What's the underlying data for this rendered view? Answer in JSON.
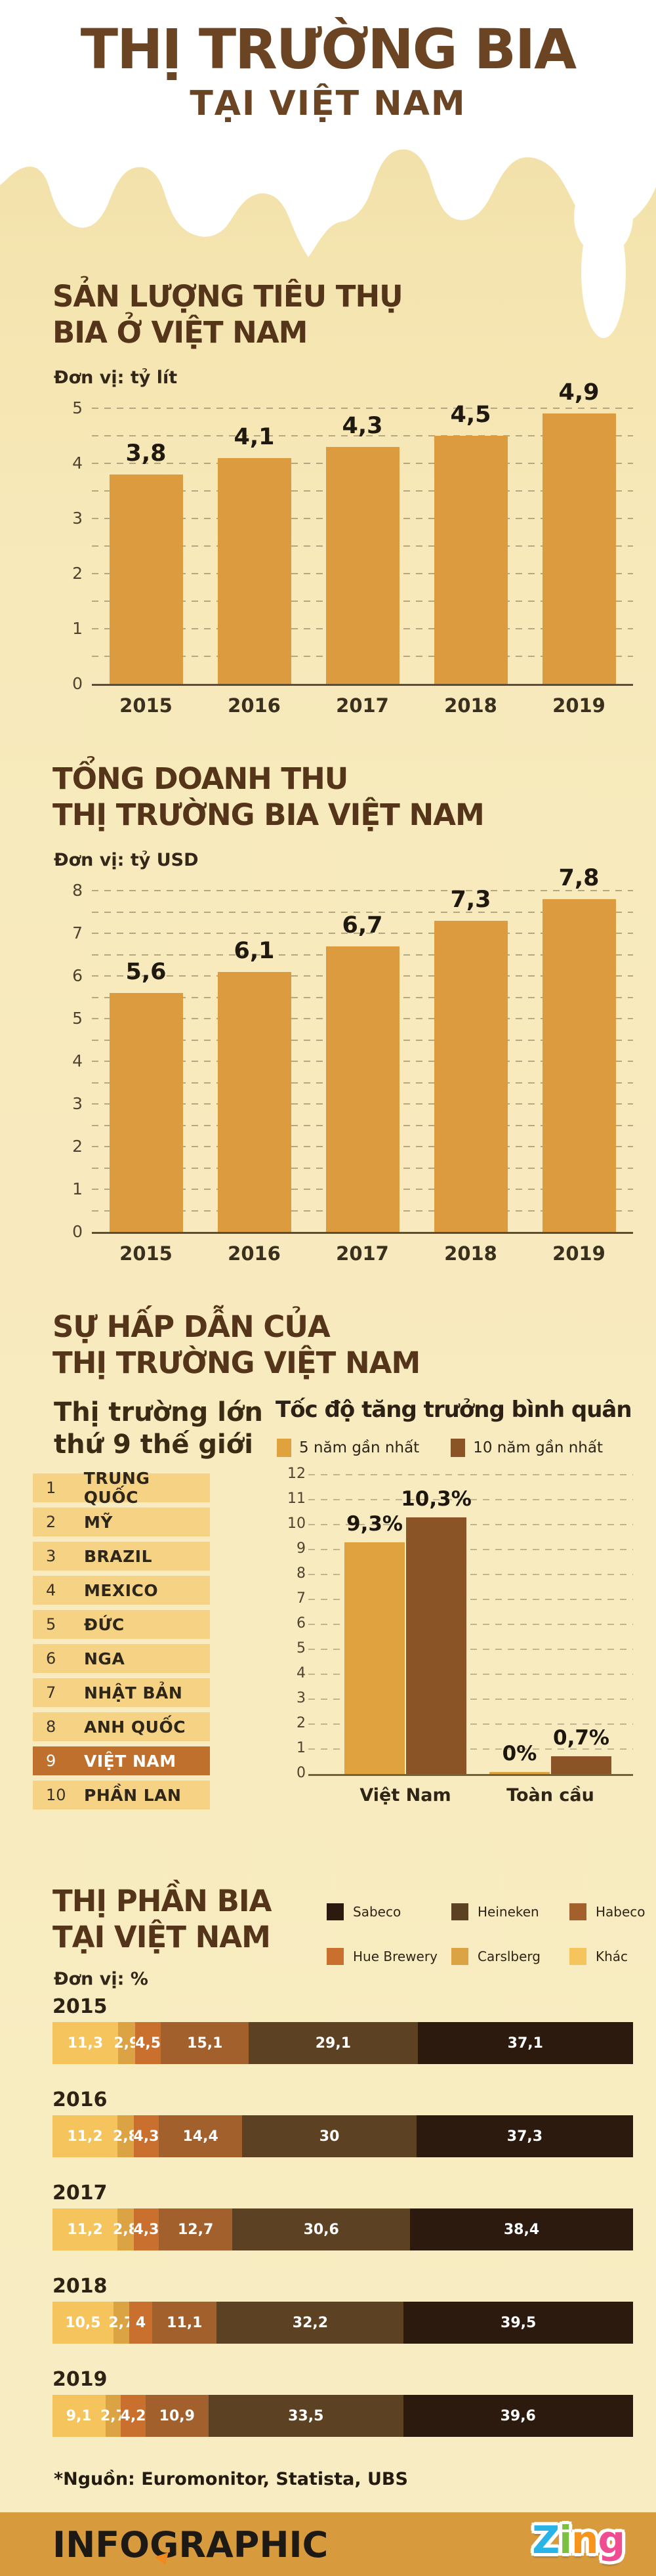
{
  "title": {
    "line1": "THỊ TRƯỜNG BIA",
    "line2": "TẠI VIỆT NAM"
  },
  "sections": {
    "consumption": {
      "heading1": "SẢN LƯỢNG TIÊU THỤ",
      "heading2": "BIA Ở VIỆT NAM",
      "unit": "Đơn vị: tỷ lít"
    },
    "revenue": {
      "heading1": "TỔNG DOANH THU",
      "heading2": "THỊ TRƯỜNG BIA VIỆT NAM",
      "unit": "Đơn vị: tỷ USD"
    },
    "attractiveness": {
      "heading1": "SỰ HẤP DẪN CỦA",
      "heading2": "THỊ TRƯỜNG VIỆT NAM",
      "left_subtitle1": "Thị trường lớn",
      "left_subtitle2": "thứ 9 thế giới",
      "growth_title": "Tốc độ tăng trưởng bình quân"
    },
    "market_share": {
      "heading1": "THỊ PHẦN BIA",
      "heading2": "TẠI VIỆT NAM",
      "unit": "Đơn vị: %"
    }
  },
  "ranking": {
    "rows": [
      {
        "rank": "1",
        "name": "TRUNG QUỐC",
        "highlight": false
      },
      {
        "rank": "2",
        "name": "MỸ",
        "highlight": false
      },
      {
        "rank": "3",
        "name": "BRAZIL",
        "highlight": false
      },
      {
        "rank": "4",
        "name": "MEXICO",
        "highlight": false
      },
      {
        "rank": "5",
        "name": "ĐỨC",
        "highlight": false
      },
      {
        "rank": "6",
        "name": "NGA",
        "highlight": false
      },
      {
        "rank": "7",
        "name": "NHẬT BẢN",
        "highlight": false
      },
      {
        "rank": "8",
        "name": "ANH QUỐC",
        "highlight": false
      },
      {
        "rank": "9",
        "name": "VIỆT NAM",
        "highlight": true
      },
      {
        "rank": "10",
        "name": "PHẦN LAN",
        "highlight": false
      }
    ]
  },
  "footer": {
    "source_note": "*Nguồn: Euromonitor, Statista, UBS",
    "brand": "INFOGRAPHIC",
    "logo": "Zing"
  },
  "colors": {
    "title_brown": "#6b4423",
    "heading_brown": "#553519",
    "bar_orange": "#dd9b3f",
    "growth_5y": "#dfa23f",
    "growth_10y": "#8a5426",
    "row_bg": "#f6d384",
    "row_highlight": "#c0702d",
    "footer_band": "#d79b3e",
    "zing_letters": [
      "#29b3e6",
      "#7bc043",
      "#f7941e",
      "#ee4d92"
    ]
  },
  "chart_data": [
    {
      "type": "bar",
      "title": "SẢN LƯỢNG TIÊU THỤ BIA Ở VIỆT NAM",
      "ylabel": "tỷ lít",
      "categories": [
        "2015",
        "2016",
        "2017",
        "2018",
        "2019"
      ],
      "values": [
        3.8,
        4.1,
        4.3,
        4.5,
        4.9
      ],
      "labels": [
        "3,8",
        "4,1",
        "4,3",
        "4,5",
        "4,9"
      ],
      "ylim": [
        0,
        5
      ],
      "tick_step": 1,
      "grid_step": 0.5,
      "grid": true,
      "bar_color": "#dd9b3f"
    },
    {
      "type": "bar",
      "title": "TỔNG DOANH THU THỊ TRƯỜNG BIA VIỆT NAM",
      "ylabel": "tỷ USD",
      "categories": [
        "2015",
        "2016",
        "2017",
        "2018",
        "2019"
      ],
      "values": [
        5.6,
        6.1,
        6.7,
        7.3,
        7.8
      ],
      "labels": [
        "5,6",
        "6,1",
        "6,7",
        "7,3",
        "7,8"
      ],
      "ylim": [
        0,
        8
      ],
      "tick_step": 1,
      "grid_step": 0.5,
      "grid": true,
      "bar_color": "#dd9b3f"
    },
    {
      "type": "bar",
      "title": "Tốc độ tăng trưởng bình quân",
      "ylabel": "%",
      "categories": [
        "Việt Nam",
        "Toàn cầu"
      ],
      "series": [
        {
          "name": "5 năm gần nhất",
          "values": [
            9.3,
            0
          ],
          "labels": [
            "9,3%",
            "0%"
          ],
          "color": "#dfa23f"
        },
        {
          "name": "10 năm gần nhất",
          "values": [
            10.3,
            0.7
          ],
          "labels": [
            "10,3%",
            "0,7%"
          ],
          "color": "#8a5426"
        }
      ],
      "ylim": [
        0,
        12
      ],
      "tick_step": 1,
      "grid_step": 1,
      "grid": true,
      "legend_position": "top"
    },
    {
      "type": "bar",
      "subtype": "stacked-horizontal",
      "title": "THỊ PHẦN BIA TẠI VIỆT NAM",
      "xlabel": "%",
      "legend_order": [
        "Sabeco",
        "Heineken",
        "Habeco",
        "Hue Brewery",
        "Carslberg",
        "Khác"
      ],
      "segment_order": [
        "Khác",
        "Carslberg",
        "Hue Brewery",
        "Habeco",
        "Heineken",
        "Sabeco"
      ],
      "colors": {
        "Sabeco": "#2b1a0d",
        "Heineken": "#5d4123",
        "Habeco": "#a2602c",
        "Hue Brewery": "#c9702e",
        "Carslberg": "#dba344",
        "Khác": "#f5c45c"
      },
      "rows": [
        {
          "year": "2015",
          "values": [
            11.3,
            2.9,
            4.5,
            15.1,
            29.1,
            37.1
          ],
          "labels": [
            "11,3",
            "2,9",
            "4,5",
            "15,1",
            "29,1",
            "37,1"
          ]
        },
        {
          "year": "2016",
          "values": [
            11.2,
            2.8,
            4.3,
            14.4,
            30,
            37.3
          ],
          "labels": [
            "11,2",
            "2,8",
            "4,3",
            "14,4",
            "30",
            "37,3"
          ]
        },
        {
          "year": "2017",
          "values": [
            11.2,
            2.8,
            4.3,
            12.7,
            30.6,
            38.4
          ],
          "labels": [
            "11,2",
            "2,8",
            "4,3",
            "12,7",
            "30,6",
            "38,4"
          ]
        },
        {
          "year": "2018",
          "values": [
            10.5,
            2.7,
            4,
            11.1,
            32.2,
            39.5
          ],
          "labels": [
            "10,5",
            "2,7",
            "4",
            "11,1",
            "32,2",
            "39,5"
          ]
        },
        {
          "year": "2019",
          "values": [
            9.1,
            2.7,
            4.2,
            10.9,
            33.5,
            39.6
          ],
          "labels": [
            "9,1",
            "2,7",
            "4,2",
            "10,9",
            "33,5",
            "39,6"
          ]
        }
      ]
    }
  ]
}
